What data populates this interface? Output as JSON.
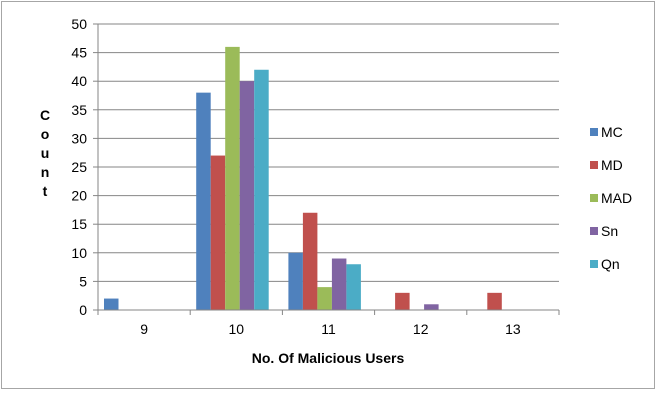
{
  "chart_data": {
    "type": "bar",
    "title": "",
    "xlabel": "No. Of Malicious Users",
    "ylabel": "Count",
    "ylim": [
      0,
      50
    ],
    "yticks": [
      0,
      5,
      10,
      15,
      20,
      25,
      30,
      35,
      40,
      45,
      50
    ],
    "grid": true,
    "legend_position": "right",
    "categories": [
      "9",
      "10",
      "11",
      "12",
      "13"
    ],
    "series": [
      {
        "name": "MC",
        "color": "#4f81bd",
        "values": [
          2,
          38,
          10,
          0,
          0
        ]
      },
      {
        "name": "MD",
        "color": "#c0504d",
        "values": [
          0,
          27,
          17,
          3,
          3
        ]
      },
      {
        "name": "MAD",
        "color": "#9bbb59",
        "values": [
          0,
          46,
          4,
          0,
          0
        ]
      },
      {
        "name": "Sn",
        "color": "#8064a2",
        "values": [
          0,
          40,
          9,
          1,
          0
        ]
      },
      {
        "name": "Qn",
        "color": "#4bacc6",
        "values": [
          0,
          42,
          8,
          0,
          0
        ]
      }
    ]
  }
}
